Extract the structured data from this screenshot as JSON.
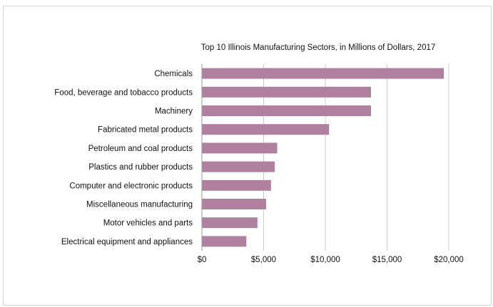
{
  "chart_data": {
    "type": "bar",
    "orientation": "horizontal",
    "title": "Top 10 Illinois Manufacturing Sectors, in Millions of Dollars, 2017",
    "xlabel": "",
    "ylabel": "",
    "categories": [
      "Chemicals",
      "Food, beverage and tobacco products",
      "Machinery",
      "Fabricated metal products",
      "Petroleum and coal products",
      "Plastics and rubber products",
      "Computer and electronic products",
      "Miscellaneous manufacturing",
      "Motor vehicles and parts",
      "Electrical equipment and appliances"
    ],
    "values": [
      19600,
      13700,
      13700,
      10300,
      6100,
      5900,
      5600,
      5200,
      4500,
      3600
    ],
    "xlim": [
      0,
      20000
    ],
    "ticks": [
      0,
      5000,
      10000,
      15000,
      20000
    ],
    "tick_labels": [
      "$0",
      "$5,000",
      "$10,000",
      "$15,000",
      "$20,000"
    ],
    "grid": "vertical",
    "legend": "none",
    "bar_color": "#b0819f",
    "grid_color": "#cccccc",
    "axis_color": "#999999"
  }
}
